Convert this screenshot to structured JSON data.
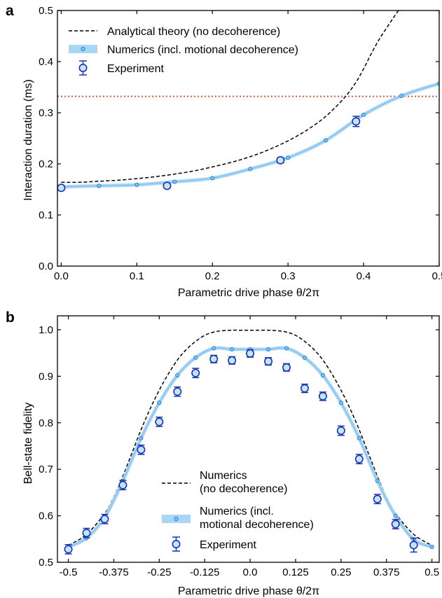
{
  "chart_data": [
    {
      "type": "line",
      "panel_label": "a",
      "xlabel": "Parametric drive phase θ/2π",
      "ylabel": "Interaction duration (ms)",
      "xlim": [
        -0.005,
        0.5
      ],
      "ylim": [
        0,
        0.5
      ],
      "xticks": [
        "0.0",
        "0.1",
        "0.2",
        "0.3",
        "0.4",
        "0.5"
      ],
      "yticks": [
        "0.0",
        "0.1",
        "0.2",
        "0.3",
        "0.4",
        "0.5"
      ],
      "xtick_values": [
        0,
        0.1,
        0.2,
        0.3,
        0.4,
        0.5
      ],
      "ytick_values": [
        0,
        0.1,
        0.2,
        0.3,
        0.4,
        0.5
      ],
      "grid": false,
      "legend": {
        "position": "top-left",
        "entries": [
          {
            "label": "Analytical theory (no decoherence)",
            "style": "dashed"
          },
          {
            "label": "Numerics (incl. motional decoherence)",
            "style": "band"
          },
          {
            "label": "Experiment",
            "style": "errorbar"
          }
        ]
      },
      "reference_line": {
        "y": 0.332,
        "color": "#ee4c3b",
        "style": "dotted"
      },
      "series": [
        {
          "name": "Analytical theory (no decoherence)",
          "color": "#000000",
          "x": [
            0,
            0.025,
            0.05,
            0.075,
            0.1,
            0.125,
            0.15,
            0.175,
            0.2,
            0.225,
            0.25,
            0.275,
            0.3,
            0.325,
            0.35,
            0.375,
            0.39,
            0.4,
            0.41,
            0.42,
            0.43,
            0.44,
            0.45,
            0.457
          ],
          "y": [
            0.164,
            0.164,
            0.166,
            0.168,
            0.171,
            0.175,
            0.18,
            0.186,
            0.194,
            0.203,
            0.214,
            0.228,
            0.245,
            0.266,
            0.293,
            0.33,
            0.36,
            0.386,
            0.415,
            0.442,
            0.465,
            0.487,
            0.508,
            0.52
          ]
        },
        {
          "name": "Numerics (incl. motional decoherence)",
          "color": "#4aa3e8",
          "band_color": "#a9d6f5",
          "x": [
            0,
            0.05,
            0.1,
            0.15,
            0.2,
            0.25,
            0.3,
            0.35,
            0.4,
            0.45,
            0.5
          ],
          "y": [
            0.155,
            0.157,
            0.159,
            0.165,
            0.172,
            0.19,
            0.212,
            0.246,
            0.296,
            0.333,
            0.357
          ]
        },
        {
          "name": "Experiment",
          "color": "#1f2fb5",
          "fill": "#bfe7fa",
          "x": [
            0,
            0.14,
            0.29,
            0.39
          ],
          "y": [
            0.153,
            0.157,
            0.207,
            0.283
          ],
          "err": [
            0.004,
            0.004,
            0.005,
            0.01
          ]
        }
      ]
    },
    {
      "type": "line",
      "panel_label": "b",
      "xlabel": "Parametric drive phase θ/2π",
      "ylabel": "Bell-state fidelity",
      "xlim": [
        -0.53,
        0.52
      ],
      "ylim": [
        0.5,
        1.03
      ],
      "xticks": [
        "-0.5",
        "-0.375",
        "-0.25",
        "-0.125",
        "0.0",
        "0.125",
        "0.25",
        "0.375",
        "0.5"
      ],
      "yticks": [
        "0.5",
        "0.6",
        "0.7",
        "0.8",
        "0.9",
        "1.0"
      ],
      "xtick_values": [
        -0.5,
        -0.375,
        -0.25,
        -0.125,
        0,
        0.125,
        0.25,
        0.375,
        0.5
      ],
      "ytick_values": [
        0.5,
        0.6,
        0.7,
        0.8,
        0.9,
        1.0
      ],
      "grid": false,
      "legend": {
        "position": "bottom-center",
        "entries": [
          {
            "label_lines": [
              "Numerics",
              "(no decoherence)"
            ],
            "style": "dashed"
          },
          {
            "label_lines": [
              "Numerics (incl.",
              "motional decoherence)"
            ],
            "style": "band"
          },
          {
            "label_lines": [
              "Experiment"
            ],
            "style": "errorbar"
          }
        ]
      },
      "series": [
        {
          "name": "Numerics (no decoherence)",
          "color": "#000000",
          "x": [
            -0.5,
            -0.45,
            -0.4,
            -0.375,
            -0.35,
            -0.325,
            -0.3,
            -0.275,
            -0.25,
            -0.225,
            -0.2,
            -0.175,
            -0.15,
            -0.125,
            -0.1,
            -0.075,
            -0.05,
            -0.025,
            0,
            0.025,
            0.05,
            0.075,
            0.1,
            0.125,
            0.15,
            0.175,
            0.2,
            0.225,
            0.25,
            0.275,
            0.3,
            0.325,
            0.35,
            0.375,
            0.4,
            0.45,
            0.5
          ],
          "y": [
            0.536,
            0.56,
            0.605,
            0.64,
            0.685,
            0.735,
            0.785,
            0.83,
            0.87,
            0.905,
            0.935,
            0.958,
            0.975,
            0.988,
            0.995,
            0.998,
            0.999,
            0.999,
            0.999,
            0.999,
            0.999,
            0.998,
            0.995,
            0.988,
            0.975,
            0.958,
            0.935,
            0.905,
            0.87,
            0.83,
            0.785,
            0.735,
            0.685,
            0.64,
            0.605,
            0.56,
            0.536
          ]
        },
        {
          "name": "Numerics (incl. motional decoherence)",
          "color": "#4aa3e8",
          "band_color": "#a9d6f5",
          "x": [
            -0.5,
            -0.45,
            -0.4,
            -0.35,
            -0.3,
            -0.25,
            -0.2,
            -0.15,
            -0.1,
            -0.05,
            0,
            0.05,
            0.1,
            0.15,
            0.2,
            0.25,
            0.3,
            0.35,
            0.4,
            0.45,
            0.5
          ],
          "y": [
            0.533,
            0.552,
            0.597,
            0.675,
            0.767,
            0.843,
            0.902,
            0.94,
            0.96,
            0.958,
            0.958,
            0.958,
            0.96,
            0.94,
            0.902,
            0.843,
            0.767,
            0.675,
            0.6,
            0.549,
            0.533
          ]
        },
        {
          "name": "Experiment",
          "color": "#1f2fb5",
          "fill": "#bfe7fa",
          "x": [
            -0.5,
            -0.45,
            -0.4,
            -0.35,
            -0.3,
            -0.25,
            -0.2,
            -0.15,
            -0.1,
            -0.05,
            0,
            0.05,
            0.1,
            0.15,
            0.2,
            0.25,
            0.3,
            0.35,
            0.4,
            0.45
          ],
          "y": [
            0.528,
            0.563,
            0.593,
            0.666,
            0.742,
            0.802,
            0.867,
            0.907,
            0.937,
            0.934,
            0.949,
            0.932,
            0.919,
            0.874,
            0.857,
            0.783,
            0.722,
            0.636,
            0.582,
            0.537
          ],
          "err": [
            0.01,
            0.01,
            0.01,
            0.01,
            0.01,
            0.01,
            0.01,
            0.01,
            0.008,
            0.008,
            0.008,
            0.008,
            0.008,
            0.009,
            0.009,
            0.01,
            0.01,
            0.01,
            0.01,
            0.015
          ]
        }
      ]
    }
  ]
}
